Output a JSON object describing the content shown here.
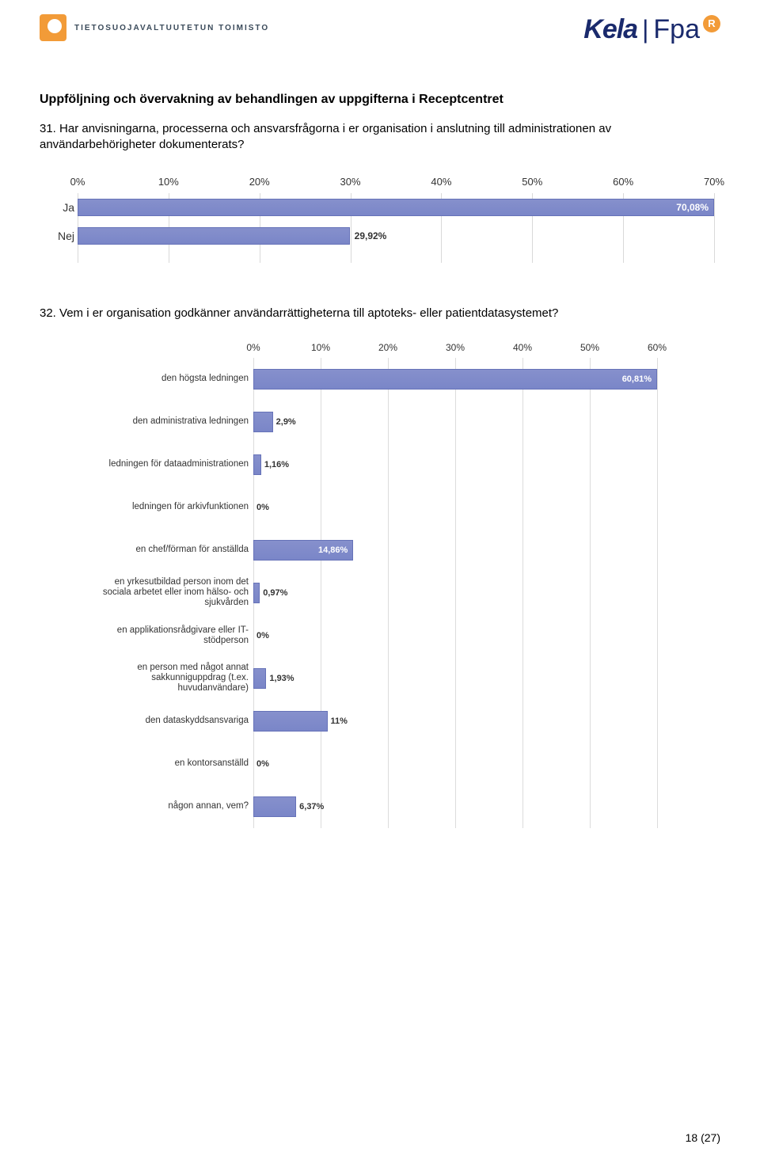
{
  "header": {
    "left_logo_text": "TIETOSUOJAVALTUUTETUN TOIMISTO",
    "right_brand_a": "Kela",
    "right_brand_sep": "|",
    "right_brand_b": "Fpa",
    "reg_mark": "R"
  },
  "section_title": "Uppföljning och övervakning av behandlingen av uppgifterna i Receptcentret",
  "q31": "31. Har anvisningarna, processerna och ansvarsfrågorna i er organisation i anslutning till administrationen av användarbehörigheter dokumenterats?",
  "q32": "32. Vem i er organisation godkänner användarrättigheterna till aptoteks- eller patientdatasystemet?",
  "chart1": {
    "type": "bar-horizontal",
    "x_max": 70,
    "tick_step": 10,
    "ticks": [
      "0%",
      "10%",
      "20%",
      "30%",
      "40%",
      "50%",
      "60%",
      "70%"
    ],
    "bar_color": "#8690cc",
    "bar_border": "#6672b8",
    "grid_color": "#d9d9d9",
    "rows": [
      {
        "label": "Ja",
        "value": 70.08,
        "text": "70,08%",
        "inside": true
      },
      {
        "label": "Nej",
        "value": 29.92,
        "text": "29,92%",
        "inside": false
      }
    ]
  },
  "chart2": {
    "type": "bar-horizontal",
    "x_max": 60,
    "tick_step": 10,
    "ticks": [
      "0%",
      "10%",
      "20%",
      "30%",
      "40%",
      "50%",
      "60%"
    ],
    "bar_color": "#8690cc",
    "bar_border": "#6672b8",
    "grid_color": "#dcdcdc",
    "rows": [
      {
        "label": "den högsta ledningen",
        "value": 60.81,
        "text": "60,81%",
        "inside": true
      },
      {
        "label": "den administrativa ledningen",
        "value": 2.9,
        "text": "2,9%",
        "inside": false
      },
      {
        "label": "ledningen för dataadministrationen",
        "value": 1.16,
        "text": "1,16%",
        "inside": false
      },
      {
        "label": "ledningen för arkivfunktionen",
        "value": 0,
        "text": "0%",
        "inside": false
      },
      {
        "label": "en chef/förman för anställda",
        "value": 14.86,
        "text": "14,86%",
        "inside": true
      },
      {
        "label": "en yrkesutbildad person inom det sociala arbetet eller inom hälso- och sjukvården",
        "value": 0.97,
        "text": "0,97%",
        "inside": false
      },
      {
        "label": "en applikationsrådgivare eller IT-stödperson",
        "value": 0,
        "text": "0%",
        "inside": false
      },
      {
        "label": "en person med något annat sakkunniguppdrag (t.ex. huvudanvändare)",
        "value": 1.93,
        "text": "1,93%",
        "inside": false
      },
      {
        "label": "den dataskyddsansvariga",
        "value": 11,
        "text": "11%",
        "inside": false
      },
      {
        "label": "en kontorsanställd",
        "value": 0,
        "text": "0%",
        "inside": false
      },
      {
        "label": "någon annan, vem?",
        "value": 6.37,
        "text": "6,37%",
        "inside": false
      }
    ]
  },
  "footer": "18 (27)"
}
